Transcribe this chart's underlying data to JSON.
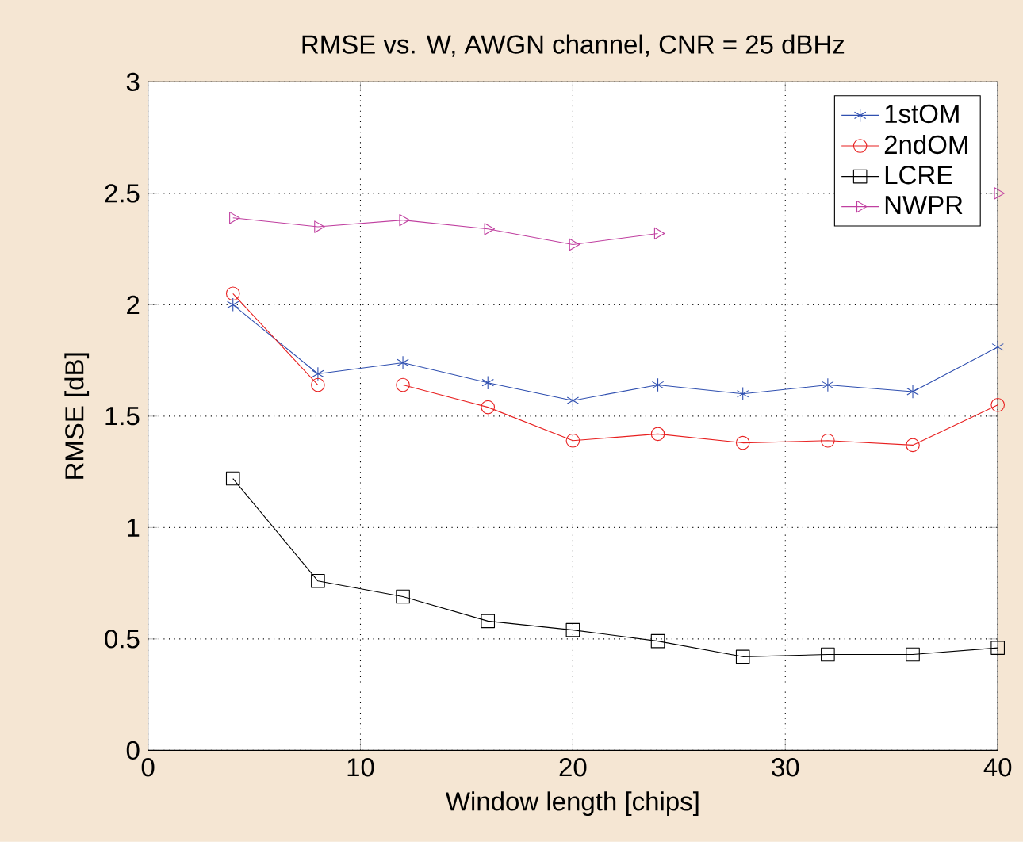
{
  "chart_data": {
    "type": "line",
    "title": "RMSE vs. W, AWGN channel, CNR = 25 dBHz",
    "xlabel": "Window length [chips]",
    "ylabel": "RMSE [dB]",
    "x": [
      4,
      8,
      12,
      16,
      20,
      24,
      28,
      32,
      36,
      40
    ],
    "xlim": [
      0,
      40
    ],
    "ylim": [
      0,
      3
    ],
    "xticks": [
      0,
      10,
      20,
      30,
      40
    ],
    "yticks": [
      0,
      0.5,
      1,
      1.5,
      2,
      2.5,
      3
    ],
    "grid": true,
    "legend": "top right",
    "line_style": "solid",
    "series": [
      {
        "name": "1stOM",
        "color": "#3050b0",
        "marker": "cross",
        "values": [
          2.0,
          1.69,
          1.74,
          1.65,
          1.57,
          1.64,
          1.6,
          1.64,
          1.61,
          1.81
        ]
      },
      {
        "name": "2ndOM",
        "color": "#e82020",
        "marker": "circle",
        "values": [
          2.05,
          1.64,
          1.64,
          1.54,
          1.39,
          1.42,
          1.38,
          1.39,
          1.37,
          1.55
        ]
      },
      {
        "name": "LCRE",
        "color": "#000000",
        "marker": "square",
        "values": [
          1.22,
          0.76,
          0.69,
          0.58,
          0.54,
          0.49,
          0.42,
          0.43,
          0.43,
          0.46
        ]
      },
      {
        "name": "NWPR",
        "color": "#c040a0",
        "marker": "triangle",
        "values": [
          2.39,
          2.35,
          2.38,
          2.34,
          2.27,
          2.32,
          null,
          null,
          null,
          2.5
        ]
      }
    ]
  }
}
